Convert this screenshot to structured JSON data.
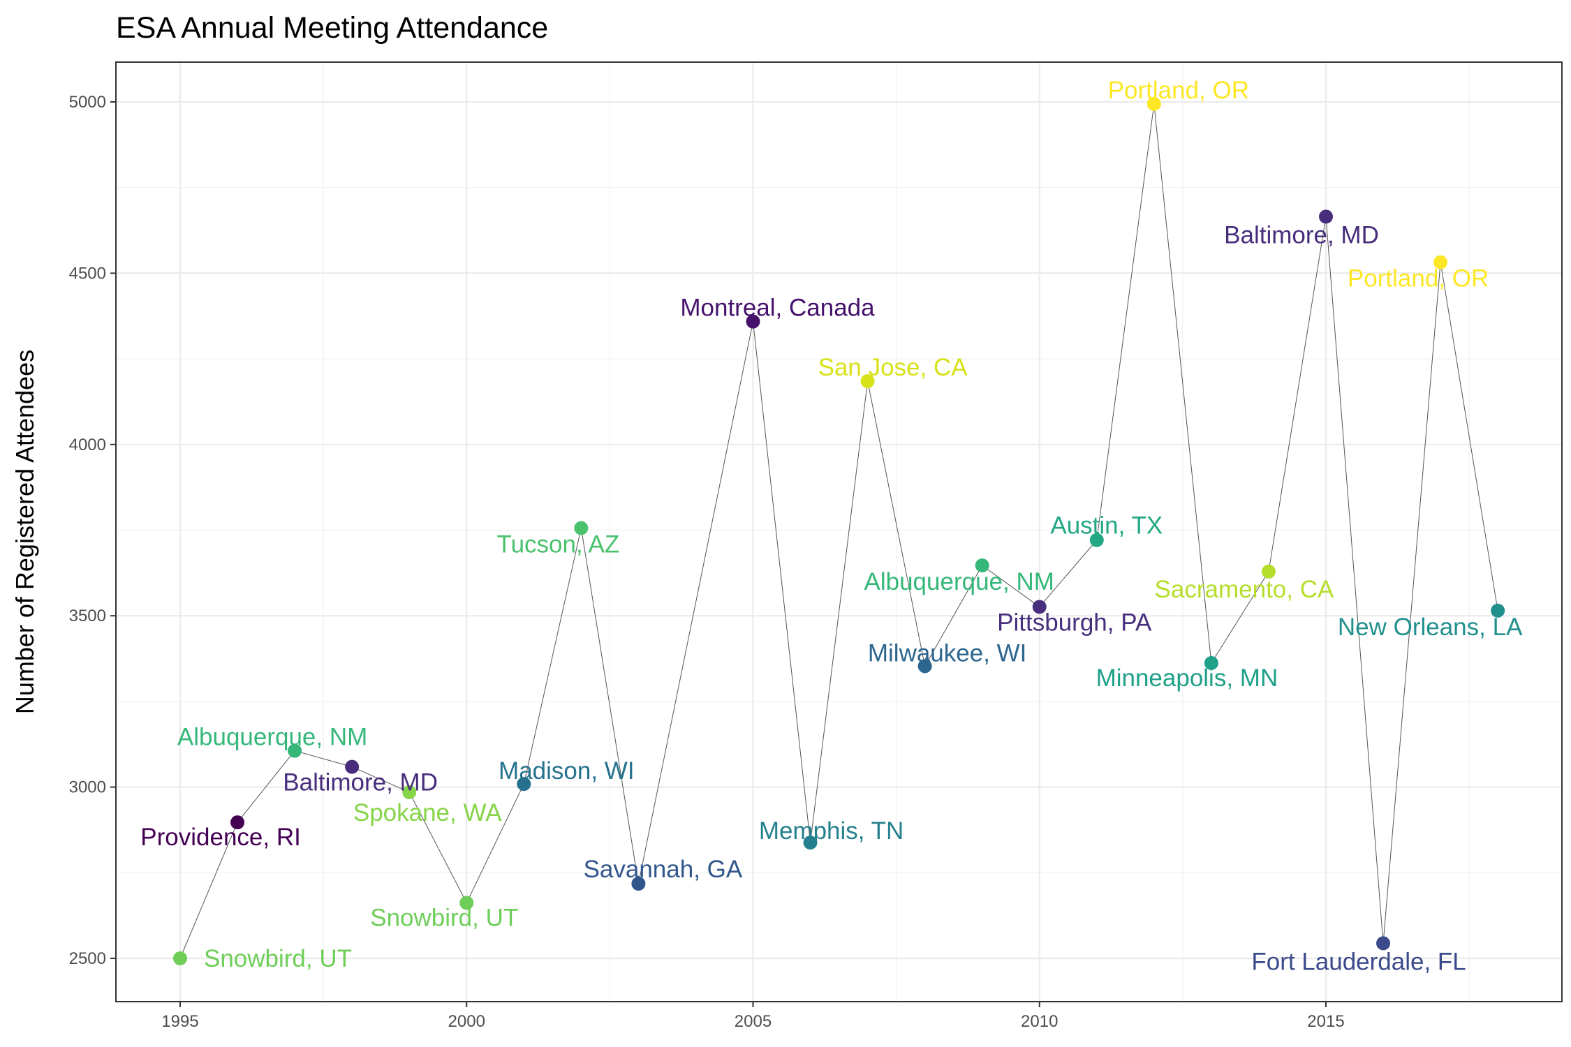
{
  "chart_data": {
    "type": "scatter",
    "title": "ESA Annual Meeting Attendance",
    "xlabel": "",
    "ylabel": "Number of Registered Attendees",
    "xlim": [
      1994.1,
      2018.9
    ],
    "ylim": [
      2390,
      5110
    ],
    "x_ticks": [
      1995,
      2000,
      2005,
      2010,
      2015
    ],
    "y_ticks": [
      2500,
      3000,
      3500,
      4000,
      4500,
      5000
    ],
    "grid": true,
    "connecting_line": true,
    "legend": "none",
    "points": [
      {
        "year": 1995,
        "attendees": 2500,
        "location": "Snowbird, UT",
        "color": "#6ece58"
      },
      {
        "year": 1996,
        "attendees": 2897,
        "location": "Providence, RI",
        "color": "#440154"
      },
      {
        "year": 1997,
        "attendees": 3106,
        "location": "Albuquerque, NM",
        "color": "#35b779"
      },
      {
        "year": 1998,
        "attendees": 3059,
        "location": "Baltimore, MD",
        "color": "#472d7b"
      },
      {
        "year": 1999,
        "attendees": 2985,
        "location": "Spokane, WA",
        "color": "#86d549"
      },
      {
        "year": 2000,
        "attendees": 2662,
        "location": "Snowbird, UT",
        "color": "#6ece58"
      },
      {
        "year": 2001,
        "attendees": 3009,
        "location": "Madison, WI",
        "color": "#26728e"
      },
      {
        "year": 2002,
        "attendees": 3756,
        "location": "Tucson, AZ",
        "color": "#4ac16d"
      },
      {
        "year": 2003,
        "attendees": 2718,
        "location": "Savannah, GA",
        "color": "#31568c"
      },
      {
        "year": 2005,
        "attendees": 4359,
        "location": "Montreal, Canada",
        "color": "#45116b"
      },
      {
        "year": 2006,
        "attendees": 2838,
        "location": "Memphis, TN",
        "color": "#25808e"
      },
      {
        "year": 2007,
        "attendees": 4185,
        "location": "San Jose, CA",
        "color": "#d8e219"
      },
      {
        "year": 2008,
        "attendees": 3353,
        "location": "Milwaukee, WI",
        "color": "#2c658e"
      },
      {
        "year": 2009,
        "attendees": 3647,
        "location": "Albuquerque, NM",
        "color": "#35b779"
      },
      {
        "year": 2010,
        "attendees": 3526,
        "location": "Pittsburgh, PA",
        "color": "#482f7e"
      },
      {
        "year": 2011,
        "attendees": 3721,
        "location": "Austin, TX",
        "color": "#22a884"
      },
      {
        "year": 2012,
        "attendees": 4994,
        "location": "Portland, OR",
        "color": "#fde725"
      },
      {
        "year": 2013,
        "attendees": 3362,
        "location": "Minneapolis, MN",
        "color": "#1fa088"
      },
      {
        "year": 2014,
        "attendees": 3629,
        "location": "Sacramento, CA",
        "color": "#b5de2b"
      },
      {
        "year": 2015,
        "attendees": 4665,
        "location": "Baltimore, MD",
        "color": "#472d7b"
      },
      {
        "year": 2016,
        "attendees": 2544,
        "location": "Fort Lauderdale, FL",
        "color": "#3b4a8a"
      },
      {
        "year": 2017,
        "attendees": 4532,
        "location": "Portland, OR",
        "color": "#fde725"
      },
      {
        "year": 2018,
        "attendees": 3515,
        "location": "New Orleans, LA",
        "color": "#21908d"
      }
    ]
  }
}
